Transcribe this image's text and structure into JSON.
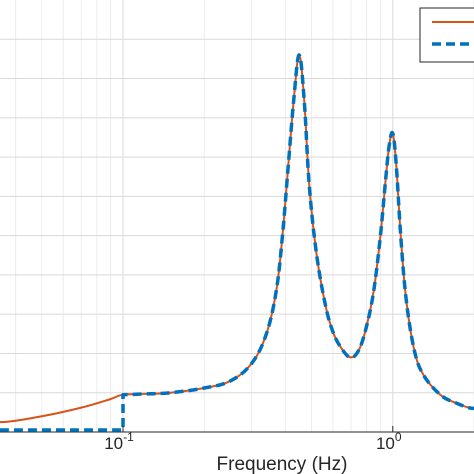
{
  "chart_data": {
    "type": "line",
    "title": "",
    "xlabel": "Frequency (Hz)",
    "ylabel": "",
    "xscale": "log",
    "xlim": [
      0.035,
      2.0
    ],
    "ylim": [
      0,
      11
    ],
    "grid": true,
    "legend_placement": "top-right",
    "xticks": [
      {
        "value": 0.1,
        "base": "10",
        "exp": "-1"
      },
      {
        "value": 1,
        "base": "10",
        "exp": "0"
      }
    ],
    "series": [
      {
        "name": "",
        "color": "#d95319",
        "style": "solid",
        "x": [
          0.035,
          0.05,
          0.07,
          0.09,
          0.1,
          0.12,
          0.15,
          0.2,
          0.25,
          0.3,
          0.34,
          0.37,
          0.39,
          0.41,
          0.43,
          0.45,
          0.47,
          0.49,
          0.52,
          0.56,
          0.6,
          0.65,
          0.7,
          0.75,
          0.8,
          0.85,
          0.9,
          0.94,
          0.97,
          1.0,
          1.03,
          1.07,
          1.12,
          1.2,
          1.3,
          1.5,
          1.7,
          2.0
        ],
        "y": [
          0.25,
          0.4,
          0.62,
          0.84,
          0.95,
          0.97,
          1.0,
          1.12,
          1.3,
          1.75,
          2.5,
          3.6,
          5.0,
          6.8,
          8.5,
          9.6,
          8.4,
          6.3,
          4.6,
          3.3,
          2.55,
          2.1,
          1.9,
          2.1,
          2.7,
          3.6,
          5.0,
          6.4,
          7.3,
          7.6,
          6.8,
          5.0,
          3.4,
          2.1,
          1.45,
          0.95,
          0.75,
          0.6
        ]
      },
      {
        "name": "",
        "color": "#0072bd",
        "style": "dashed",
        "x": [
          0.035,
          0.1,
          0.1,
          0.12,
          0.15,
          0.2,
          0.25,
          0.3,
          0.34,
          0.37,
          0.39,
          0.41,
          0.43,
          0.45,
          0.47,
          0.49,
          0.52,
          0.56,
          0.6,
          0.65,
          0.7,
          0.75,
          0.8,
          0.85,
          0.9,
          0.94,
          0.97,
          1.0,
          1.03,
          1.07,
          1.12,
          1.2,
          1.3,
          1.5,
          1.7,
          2.0
        ],
        "y": [
          0.05,
          0.05,
          0.95,
          0.97,
          1.0,
          1.12,
          1.3,
          1.75,
          2.5,
          3.6,
          5.0,
          6.8,
          8.5,
          9.6,
          8.4,
          6.3,
          4.6,
          3.3,
          2.55,
          2.1,
          1.9,
          2.1,
          2.7,
          3.6,
          5.0,
          6.4,
          7.3,
          7.6,
          6.8,
          5.0,
          3.4,
          2.1,
          1.45,
          0.95,
          0.75,
          0.6
        ]
      }
    ]
  }
}
